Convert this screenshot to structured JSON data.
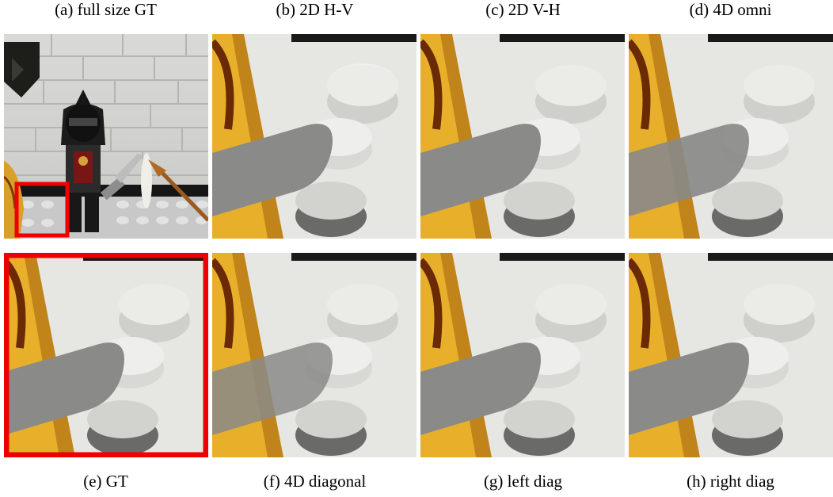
{
  "figure": {
    "top_captions": [
      "(a) full size GT",
      "(b) 2D H-V",
      "(c) 2D V-H",
      "(d) 4D omni"
    ],
    "bottom_captions": [
      "(e) GT",
      "(f) 4D diagonal",
      "(g) left diag",
      "(h) right diag"
    ]
  },
  "colors": {
    "highlight_box": "#ee0000",
    "background": "#ffffff"
  },
  "panels": [
    {
      "id": "a",
      "content": "full-scene"
    },
    {
      "id": "b",
      "content": "zoom-crop"
    },
    {
      "id": "c",
      "content": "zoom-crop"
    },
    {
      "id": "d",
      "content": "zoom-crop"
    },
    {
      "id": "e",
      "content": "zoom-crop-highlighted"
    },
    {
      "id": "f",
      "content": "zoom-crop"
    },
    {
      "id": "g",
      "content": "zoom-crop"
    },
    {
      "id": "h",
      "content": "zoom-crop"
    }
  ]
}
